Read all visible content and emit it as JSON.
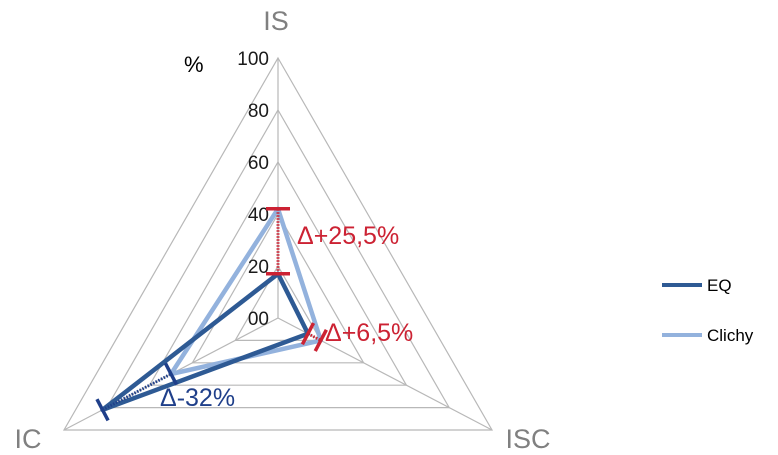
{
  "chart_data": {
    "type": "radar",
    "axes": [
      "IS",
      "ISC",
      "IC"
    ],
    "unit": "%",
    "r_ticks": [
      "00",
      "20",
      "40",
      "60",
      "80",
      "100"
    ],
    "r_range": [
      0,
      100
    ],
    "grid": true,
    "legend_position": "right",
    "series": [
      {
        "name": "EQ",
        "values": [
          17,
          14,
          82
        ],
        "color": "#2e5a94"
      },
      {
        "name": "Clichy",
        "values": [
          42,
          20,
          50
        ],
        "color": "#93b2dd"
      }
    ],
    "annotations": [
      {
        "text": "Δ+25,5%",
        "axis": "IS",
        "color": "#cc2233"
      },
      {
        "text": "Δ+6,5%",
        "axis": "ISC",
        "color": "#cc2233"
      },
      {
        "text": "Δ-32%",
        "axis": "IC",
        "color": "#1f3f8a"
      }
    ]
  }
}
